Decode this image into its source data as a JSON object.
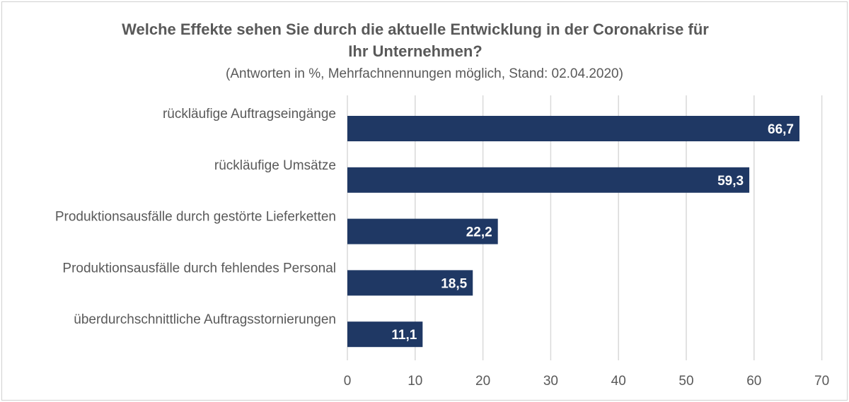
{
  "chart_data": {
    "type": "bar",
    "orientation": "horizontal",
    "title": "Welche Effekte sehen Sie durch die aktuelle Entwicklung in der Coronakrise für Ihr Unternehmen?",
    "title_lines": [
      "Welche Effekte sehen Sie durch die aktuelle Entwicklung in der Coronakrise für",
      "Ihr Unternehmen?"
    ],
    "subtitle": "(Antworten in %, Mehrfachnennungen möglich, Stand: 02.04.2020)",
    "categories": [
      "rückläufige Auftragseingänge",
      "rückläufige Umsätze",
      "Produktionsausfälle durch gestörte Lieferketten",
      "Produktionsausfälle durch fehlendes Personal",
      "überdurchschnittliche Auftragsstornierungen"
    ],
    "values": [
      66.7,
      59.3,
      22.2,
      18.5,
      11.1
    ],
    "data_labels": [
      "66,7",
      "59,3",
      "22,2",
      "18,5",
      "11,1"
    ],
    "xlim": [
      0,
      70
    ],
    "xticks": [
      "0",
      "10",
      "20",
      "30",
      "40",
      "50",
      "60",
      "70"
    ],
    "grid": true,
    "bar_color": "#1f3864",
    "label_color": "#ffffff"
  }
}
